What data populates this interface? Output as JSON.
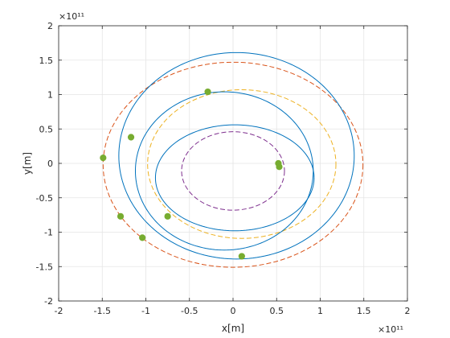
{
  "chart_data": {
    "type": "line",
    "title": "",
    "xlabel": "x[m]",
    "ylabel": "y[m]",
    "x_exponent_label": "×10¹¹",
    "y_exponent_label": "×10¹¹",
    "xlim": [
      -2,
      2
    ],
    "ylim": [
      -2,
      2
    ],
    "xticks": [
      -2,
      -1.5,
      -1,
      -0.5,
      0,
      0.5,
      1,
      1.5,
      2
    ],
    "yticks": [
      -2,
      -1.5,
      -1,
      -0.5,
      0,
      0.5,
      1,
      1.5,
      2
    ],
    "grid": true,
    "legend": "none",
    "reference_orbits": [
      {
        "style": "dashed",
        "color": "#7e2f8e",
        "cx": 0,
        "cy": -0.11,
        "rx": 0.59,
        "ry": 0.57
      },
      {
        "style": "dashed",
        "color": "#edb120",
        "cx": 0.1,
        "cy": -0.01,
        "rx": 1.08,
        "ry": 1.08
      },
      {
        "style": "dashed",
        "color": "#d95319",
        "cx": 0,
        "cy": -0.02,
        "rx": 1.49,
        "ry": 1.49
      }
    ],
    "trajectory": {
      "style": "solid",
      "color": "#0072bd",
      "loops": [
        {
          "cx": 0.02,
          "cy": -0.21,
          "rx": 0.91,
          "ry": 0.77,
          "start_deg": 0,
          "end_deg": 360
        },
        {
          "cx": -0.1,
          "cy": -0.11,
          "rx": 1.02,
          "ry": 1.15,
          "start_deg": 0,
          "end_deg": 360
        },
        {
          "cx": 0.04,
          "cy": 0.11,
          "rx": 1.35,
          "ry": 1.5,
          "start_deg": 0,
          "end_deg": 360
        }
      ]
    },
    "markers": {
      "color": "#77ac30",
      "points": [
        {
          "x": -0.29,
          "y": 1.04
        },
        {
          "x": -1.17,
          "y": 0.38
        },
        {
          "x": -1.49,
          "y": 0.08
        },
        {
          "x": -1.29,
          "y": -0.77
        },
        {
          "x": -1.04,
          "y": -1.08
        },
        {
          "x": -0.75,
          "y": -0.77
        },
        {
          "x": 0.1,
          "y": -1.35
        },
        {
          "x": 0.52,
          "y": 0.0
        },
        {
          "x": 0.53,
          "y": -0.05
        }
      ]
    }
  }
}
